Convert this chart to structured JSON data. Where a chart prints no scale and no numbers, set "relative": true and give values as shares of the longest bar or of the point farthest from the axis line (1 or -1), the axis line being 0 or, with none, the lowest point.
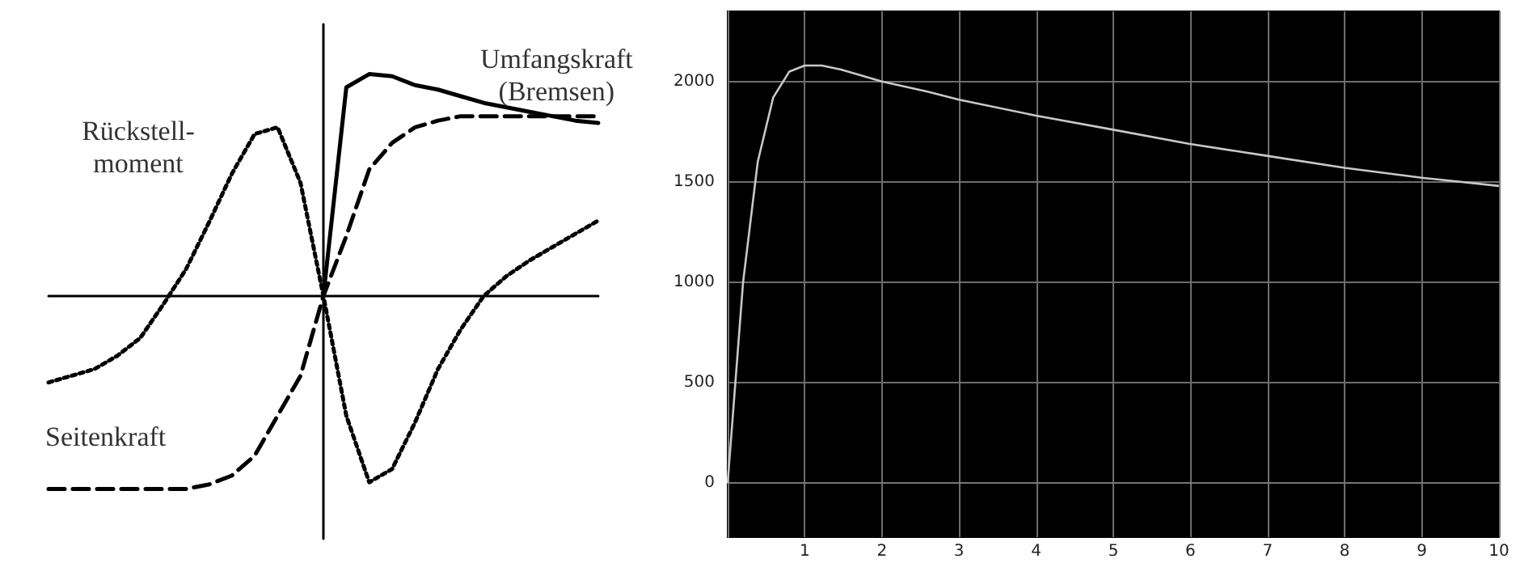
{
  "chart_data": [
    {
      "type": "line",
      "relative": true,
      "categories": [
        null,
        null,
        null,
        null,
        null,
        null,
        null,
        null,
        null,
        null,
        null,
        null,
        null,
        null,
        null,
        null,
        null,
        null,
        null,
        null,
        null,
        null,
        null,
        null,
        null
      ],
      "grid": false,
      "legend": false,
      "series": [
        {
          "name": "Umfangskraft\n(Bremsen)",
          "color": "#000000",
          "line_style": "solid",
          "values": [
            null,
            null,
            null,
            null,
            null,
            null,
            null,
            null,
            null,
            null,
            null,
            null,
            0,
            0.94,
            1,
            0.99,
            0.95,
            0.93,
            0.9,
            0.87,
            0.85,
            0.83,
            0.81,
            0.79,
            0.78
          ]
        },
        {
          "name": "Seitenkraft",
          "color": "#000000",
          "line_style": "dashed",
          "values": [
            -0.87,
            -0.87,
            -0.87,
            -0.87,
            -0.87,
            -0.87,
            -0.87,
            -0.85,
            -0.81,
            -0.72,
            -0.54,
            -0.36,
            0,
            0.27,
            0.57,
            0.69,
            0.76,
            0.79,
            0.81,
            0.81,
            0.81,
            0.81,
            0.81,
            0.81,
            0.81
          ]
        },
        {
          "name": "Rückstell-\nmoment",
          "color": "#000000",
          "line_style": "dotted",
          "values": [
            -0.39,
            -0.36,
            -0.33,
            -0.27,
            -0.19,
            -0.04,
            0.12,
            0.33,
            0.55,
            0.73,
            0.76,
            0.51,
            0,
            -0.54,
            -0.84,
            -0.78,
            -0.57,
            -0.33,
            -0.15,
            0,
            0.09,
            0.16,
            0.22,
            0.28,
            0.34
          ]
        }
      ]
    },
    {
      "type": "line",
      "x": [
        0,
        0.2,
        0.39,
        0.59,
        0.8,
        1.0,
        1.22,
        1.47,
        2.0,
        2.59,
        3.0,
        4.0,
        5.0,
        5.98,
        6.99,
        8.0,
        9.02,
        10
      ],
      "values": [
        0,
        1000,
        1600,
        1920,
        2050,
        2080,
        2080,
        2060,
        2000,
        1950,
        1910,
        1830,
        1760,
        1690,
        1630,
        1570,
        1520,
        1480
      ],
      "color": "#c8c8c8",
      "xlim": [
        0,
        10
      ],
      "xticks": [
        1,
        2,
        3,
        4,
        5,
        6,
        7,
        8,
        9,
        10
      ],
      "ylim": [
        -270,
        2350
      ],
      "yticks": [
        0,
        500,
        1000,
        1500,
        2000
      ],
      "grid": true,
      "legend": false
    }
  ]
}
